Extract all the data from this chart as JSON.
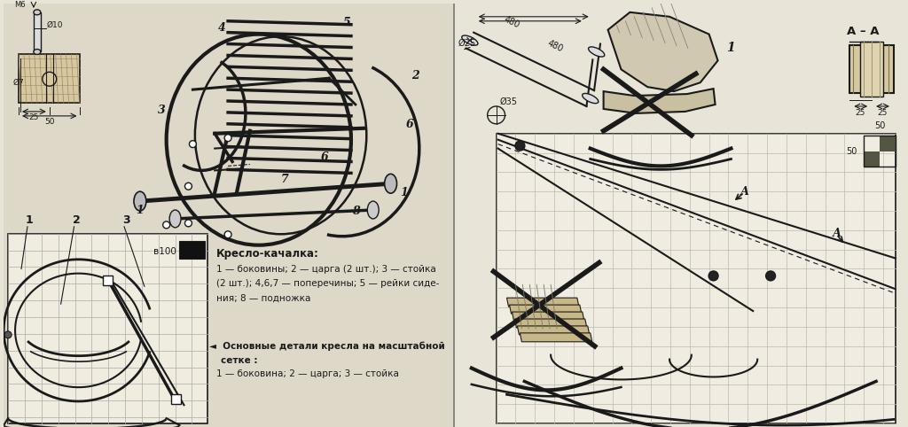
{
  "bg_color": "#e8e4d8",
  "left_bg": "#ddd8c8",
  "right_bg": "#e8e4d8",
  "line_color": "#1a1a1a",
  "grid_color": "#aaaaaa",
  "title_text": "Кресло-качалка:",
  "desc1": "1 — боковины; 2 — царга (2 шт.); 3 — стойка",
  "desc2": "(2 шт.); 4,6,7 — поперечины; 5 — рейки сиде-",
  "desc3": "ния; 8 — подножка",
  "arrow_label": "◄  Основные детали кресла на масштабной",
  "arrow_label2": "сетке :",
  "arrow_label3": "1 — боковина; 2 — царга; 3 — стойка",
  "label_AA": "А – А",
  "dim_25": "25",
  "dim_25b": "25",
  "dim_50": "50",
  "dim_50b": "50",
  "dim_100": "в100",
  "dim_phi25": "Ø25",
  "dim_480a": "480",
  "dim_480b": "480",
  "dim_phi35": "Ø35",
  "dim_phi10": "Ø10",
  "dim_phi7": "Ø7",
  "dim_25c": "25",
  "dim_50c": "50",
  "dim_M6": "M6"
}
